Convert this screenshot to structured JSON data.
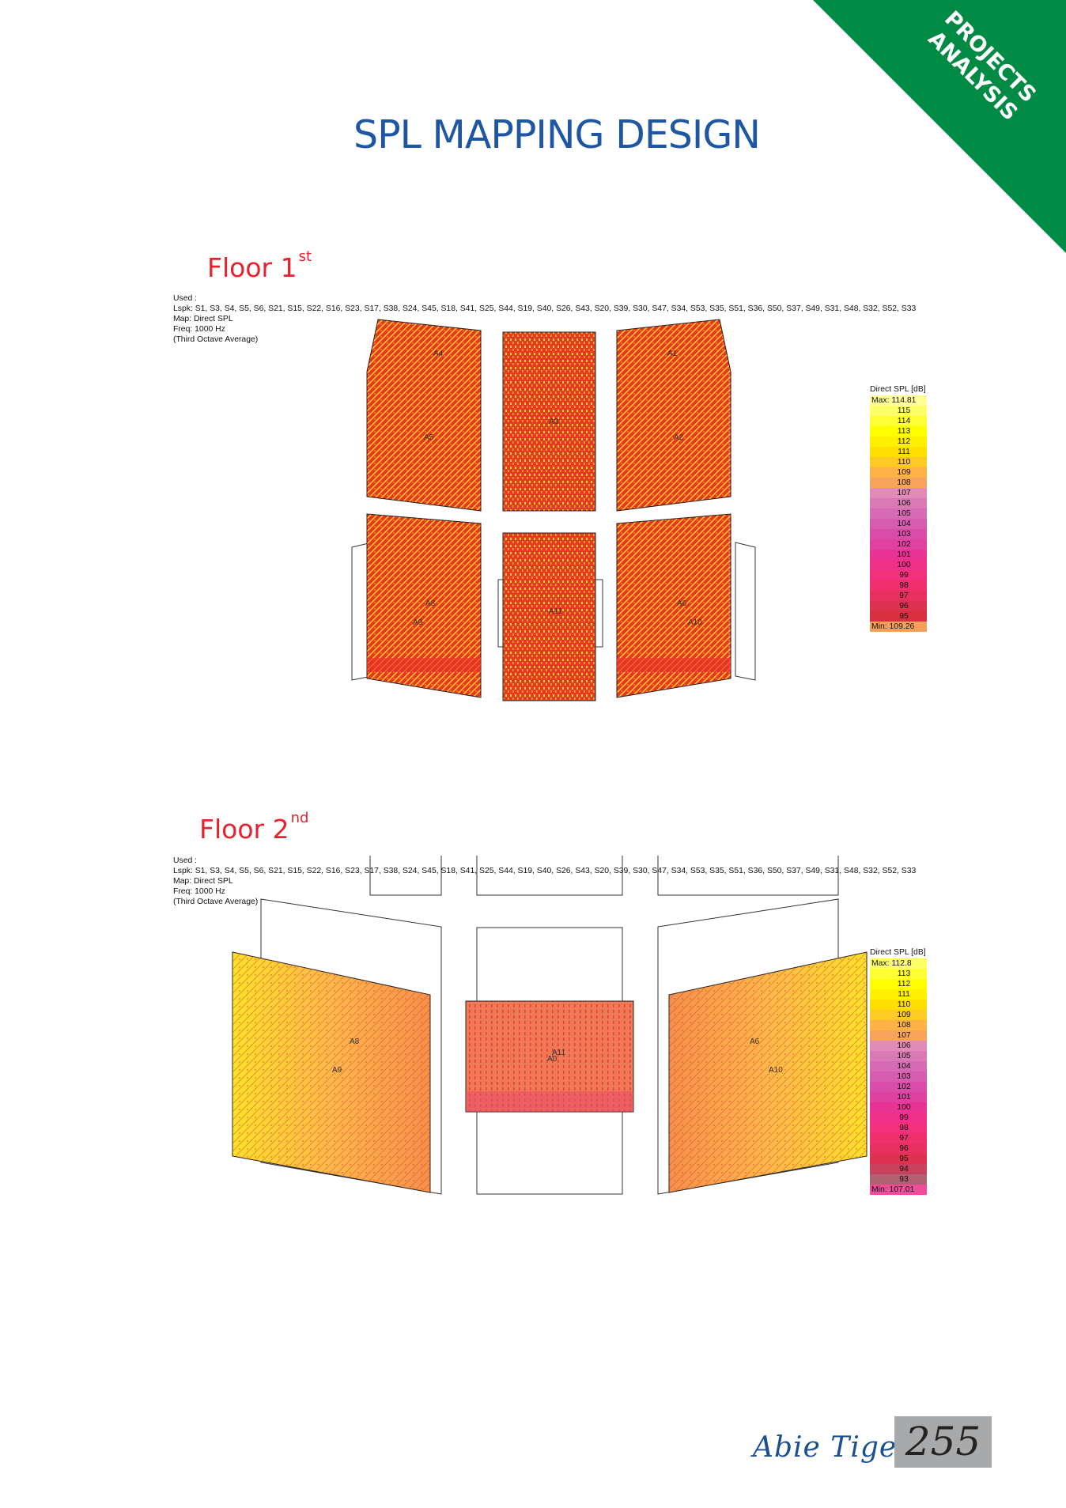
{
  "corner_banner": {
    "line1": "PROJECTS",
    "line2": "ANALYSIS",
    "color": "#008a44"
  },
  "page_title": "SPL MAPPING DESIGN",
  "floors": [
    {
      "heading": "Floor 1",
      "heading_sup": "st",
      "meta": {
        "used": "Used :",
        "lspk": "Lspk: S1, S3, S4, S5, S6, S21, S15, S22, S16, S23, S17, S38, S24, S45, S18, S41, S25, S44, S19, S40, S26, S43, S20, S39, S30, S47, S34, S53, S35, S51, S36, S50, S37, S49, S31, S48, S32, S52, S33",
        "map": "Map: Direct SPL",
        "freq": "Freq: 1000 Hz",
        "avg": "(Third Octave Average)"
      },
      "area_labels": [
        "A4",
        "A3",
        "A1",
        "A5",
        "A2",
        "A8",
        "A9",
        "A11",
        "A6",
        "A10"
      ],
      "legend": {
        "title": "Direct SPL [dB]",
        "max_label": "Max:",
        "max_value": "114.81",
        "min_label": "Min:",
        "min_value": "109.26",
        "steps": [
          "115",
          "114",
          "113",
          "112",
          "111",
          "110",
          "109",
          "108",
          "107",
          "106",
          "105",
          "104",
          "103",
          "102",
          "101",
          "100",
          "99",
          "98",
          "97",
          "96",
          "95"
        ],
        "colors": [
          "#ffff66",
          "#ffff33",
          "#ffff00",
          "#ffef00",
          "#ffdf00",
          "#ffc926",
          "#ffb347",
          "#f7a35c",
          "#e28ab8",
          "#d97ab5",
          "#d66bb3",
          "#d65cb0",
          "#d94da8",
          "#e0409f",
          "#e83394",
          "#f02f88",
          "#f2307b",
          "#f0306c",
          "#e8305e",
          "#e0304f",
          "#d83040"
        ],
        "max_color": "#ffff99",
        "min_color": "#f5a05a"
      }
    },
    {
      "heading": "Floor 2",
      "heading_sup": "nd",
      "meta": {
        "used": "Used :",
        "lspk": "Lspk: S1, S3, S4, S5, S6, S21, S15, S22, S16, S23, S17, S38, S24, S45, S18, S41, S25, S44, S19, S40, S26, S43, S20, S39, S30, S47, S34, S53, S35, S51, S36, S50, S37, S49, S31, S48, S32, S52, S33",
        "map": "Map: Direct SPL",
        "freq": "Freq: 1000 Hz",
        "avg": "(Third Octave Average)"
      },
      "area_labels": [
        "A8",
        "A9",
        "A11",
        "A0",
        "A6",
        "A10"
      ],
      "legend": {
        "title": "Direct SPL [dB]",
        "max_label": "Max:",
        "max_value": "112.8",
        "min_label": "Min:",
        "min_value": "107.01",
        "steps": [
          "113",
          "112",
          "111",
          "110",
          "109",
          "108",
          "107",
          "106",
          "105",
          "104",
          "103",
          "102",
          "101",
          "100",
          "99",
          "98",
          "97",
          "96",
          "95",
          "94",
          "93"
        ],
        "colors": [
          "#ffff33",
          "#ffff00",
          "#ffef00",
          "#ffdf00",
          "#ffc926",
          "#ffb347",
          "#f7a35c",
          "#e28ab8",
          "#d97ab5",
          "#d66bb3",
          "#d65cb0",
          "#d94da8",
          "#e0409f",
          "#e83394",
          "#f02f88",
          "#f2307b",
          "#f0306c",
          "#e8305e",
          "#e0304f",
          "#c8405a",
          "#b06070"
        ],
        "max_color": "#ffff66",
        "min_color": "#f04c9a"
      }
    }
  ],
  "footer": {
    "brand": "Abie Tiger",
    "page_number": "255"
  }
}
